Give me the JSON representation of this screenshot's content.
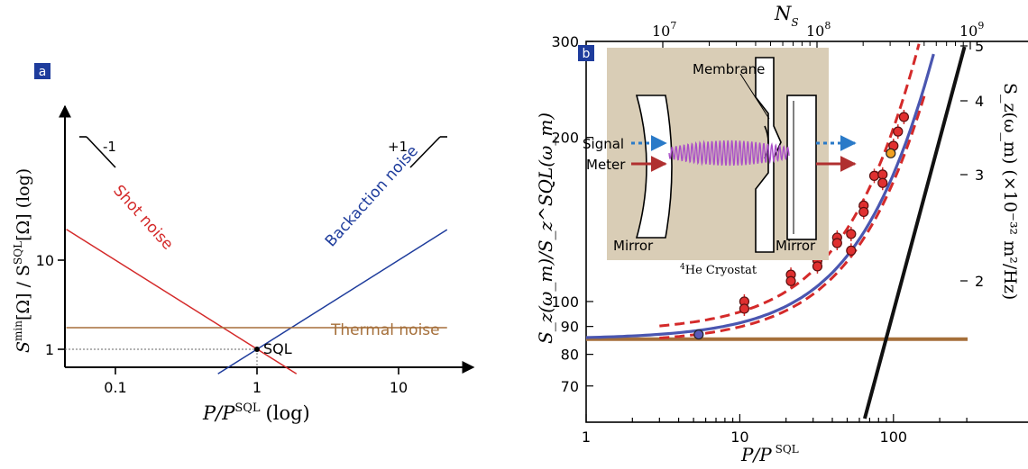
{
  "chart_data": [
    {
      "panel": "a",
      "type": "line",
      "xscale": "log",
      "yscale": "log",
      "xlabel_main": "P/P",
      "xlabel_sup": "SQL",
      "xlabel_suffix": "(log)",
      "ylabel_main": "S",
      "ylabel_sup": "min",
      "ylabel_rest": "[Ω] / S",
      "ylabel_sup2": "SQL",
      "ylabel_rest2": "[Ω]",
      "ylabel_suffix": "(log)",
      "xlim": [
        0.045,
        20
      ],
      "ylim": [
        0.45,
        22
      ],
      "xticks": [
        {
          "value": 0.1,
          "label": "0.1"
        },
        {
          "value": 1,
          "label": "1"
        },
        {
          "value": 10,
          "label": "10"
        }
      ],
      "yticks": [
        {
          "value": 1,
          "label": "1"
        },
        {
          "value": 10,
          "label": "10"
        }
      ],
      "series": [
        {
          "name": "Shot noise",
          "color": "#d42a2a",
          "x": [
            0.045,
            1.9
          ],
          "y": [
            22.2,
            0.53
          ]
        },
        {
          "name": "Backaction noise",
          "color": "#1e3c9c",
          "x": [
            0.53,
            22
          ],
          "y": [
            0.53,
            22
          ]
        },
        {
          "name": "Thermal noise",
          "color": "#a56f3a",
          "x": [
            0.045,
            22
          ],
          "y": [
            1.75,
            1.75
          ]
        }
      ],
      "point": {
        "label": "SQL",
        "x": 1,
        "y": 1
      },
      "slope_labels": [
        "-1",
        "+1"
      ]
    },
    {
      "panel": "b",
      "type": "scatter",
      "xscale": "log",
      "yscale": "log",
      "xlabel": "P/P",
      "xlabel_sup": "SQL",
      "ylabel": "S_z(ω_m)/S_z^SQL(ω_m)",
      "ylabel_right": "S_z(ω_m) (×10⁻³² m²/Hz)",
      "top_axis_label": "N",
      "top_axis_sub": "S",
      "xlim": [
        1,
        300
      ],
      "ylim": [
        60,
        300
      ],
      "xticks": [
        {
          "value": 1,
          "label": "1"
        },
        {
          "value": 10,
          "label": "10"
        },
        {
          "value": 100,
          "label": "100"
        }
      ],
      "yticks": [
        {
          "value": 70,
          "label": "70"
        },
        {
          "value": 80,
          "label": "80"
        },
        {
          "value": 90,
          "label": "90"
        },
        {
          "value": 100,
          "label": "100"
        },
        {
          "value": 200,
          "label": "200"
        },
        {
          "value": 300,
          "label": "300"
        }
      ],
      "top_ticks": [
        {
          "base": "10",
          "exp": "7"
        },
        {
          "base": "10",
          "exp": "8"
        },
        {
          "base": "10",
          "exp": "9"
        }
      ],
      "right_ticks": [
        {
          "value": 2,
          "label": "2"
        },
        {
          "value": 3,
          "label": "3"
        },
        {
          "value": 4,
          "label": "4"
        },
        {
          "value": 5,
          "label": "5"
        }
      ],
      "data_points": [
        {
          "x": 10.7,
          "y": 100
        },
        {
          "x": 10.7,
          "y": 97
        },
        {
          "x": 21.5,
          "y": 112
        },
        {
          "x": 21.5,
          "y": 109
        },
        {
          "x": 32,
          "y": 119
        },
        {
          "x": 32,
          "y": 116
        },
        {
          "x": 43,
          "y": 131
        },
        {
          "x": 43,
          "y": 128
        },
        {
          "x": 53,
          "y": 133
        },
        {
          "x": 53,
          "y": 124
        },
        {
          "x": 64,
          "y": 150
        },
        {
          "x": 64,
          "y": 146
        },
        {
          "x": 75,
          "y": 170
        },
        {
          "x": 85,
          "y": 171
        },
        {
          "x": 85,
          "y": 165
        },
        {
          "x": 100,
          "y": 193
        },
        {
          "x": 107,
          "y": 205
        },
        {
          "x": 117,
          "y": 218
        }
      ],
      "special_points": [
        {
          "x": 5.4,
          "y": 87,
          "color": "#5a5ab8"
        },
        {
          "x": 96,
          "y": 187,
          "color": "#f0a020"
        }
      ],
      "inset_labels": {
        "signal": "Signal",
        "meter": "Meter",
        "membrane": "Membrane",
        "mirror_left": "Mirror",
        "mirror_right": "Mirror",
        "cryostat_sup": "4",
        "cryostat": "He Cryostat"
      }
    }
  ],
  "panel_labels": {
    "a": "a",
    "b": "b"
  },
  "colors": {
    "red": "#d42a2a",
    "blue": "#1e3c9c",
    "brown": "#a56f3a",
    "inset_bg": "#d9cdb6",
    "panel_label_bg": "#1e3c9c"
  }
}
